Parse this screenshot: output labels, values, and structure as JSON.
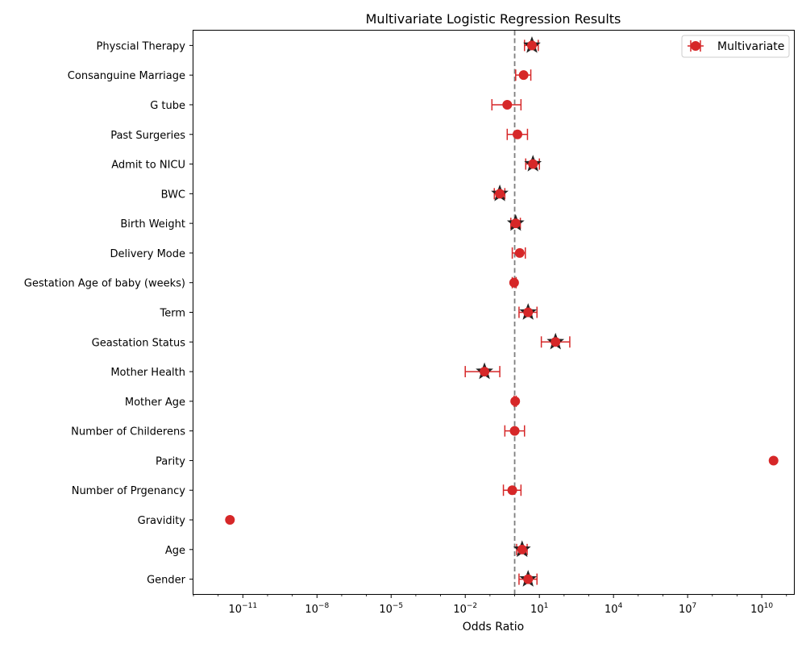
{
  "chart_data": {
    "type": "scatter",
    "title": "Multivariate Logistic Regression Results",
    "xlabel": "Odds Ratio",
    "ylabel": "",
    "x_scale": "log",
    "xlim": [
      1e-13,
      200000000000.0
    ],
    "x_ticks": [
      {
        "value": 1e-11,
        "base": "10",
        "exp": "−11"
      },
      {
        "value": 1e-08,
        "base": "10",
        "exp": "−8"
      },
      {
        "value": 1e-05,
        "base": "10",
        "exp": "−5"
      },
      {
        "value": 0.01,
        "base": "10",
        "exp": "−2"
      },
      {
        "value": 10,
        "base": "10",
        "exp": "1"
      },
      {
        "value": 10000.0,
        "base": "10",
        "exp": "4"
      },
      {
        "value": 10000000.0,
        "base": "10",
        "exp": "7"
      },
      {
        "value": 10000000000.0,
        "base": "10",
        "exp": "10"
      }
    ],
    "reference_line": 1,
    "legend": {
      "label": "Multivariate",
      "position": "top-right"
    },
    "series_color": "#d62728",
    "reference_color": "#7f7f7f",
    "marker_significant": "star",
    "marker_default": "circle",
    "rows": [
      {
        "label": "Physcial Therapy",
        "or": 5.0,
        "lo": 2.5,
        "hi": 9.0,
        "significant": true
      },
      {
        "label": "Consanguine Marriage",
        "or": 2.3,
        "lo": 1.1,
        "hi": 4.5,
        "significant": false
      },
      {
        "label": "G tube",
        "or": 0.5,
        "lo": 0.12,
        "hi": 1.8,
        "significant": false
      },
      {
        "label": "Past Surgeries",
        "or": 1.3,
        "lo": 0.5,
        "hi": 3.3,
        "significant": false
      },
      {
        "label": "Admit to NICU",
        "or": 5.5,
        "lo": 2.8,
        "hi": 10.0,
        "significant": true
      },
      {
        "label": "BWC",
        "or": 0.25,
        "lo": 0.15,
        "hi": 0.4,
        "significant": true
      },
      {
        "label": "Birth Weight",
        "or": 1.1,
        "lo": 0.7,
        "hi": 1.7,
        "significant": true
      },
      {
        "label": "Delivery Mode",
        "or": 1.6,
        "lo": 0.8,
        "hi": 2.7,
        "significant": false
      },
      {
        "label": "Gestation Age of baby (weeks)",
        "or": 0.95,
        "lo": 0.8,
        "hi": 1.15,
        "significant": false
      },
      {
        "label": "Term",
        "or": 3.5,
        "lo": 1.5,
        "hi": 8.0,
        "significant": true
      },
      {
        "label": "Geastation Status",
        "or": 45,
        "lo": 12,
        "hi": 170,
        "significant": true
      },
      {
        "label": "Mother Health",
        "or": 0.06,
        "lo": 0.01,
        "hi": 0.25,
        "significant": true
      },
      {
        "label": "Mother Age",
        "or": 1.05,
        "lo": 0.95,
        "hi": 1.15,
        "significant": false
      },
      {
        "label": "Number of Childerens",
        "or": 1.0,
        "lo": 0.4,
        "hi": 2.5,
        "significant": false
      },
      {
        "label": "Parity",
        "or": 30000000000,
        "lo": 30000000000,
        "hi": 30000000000,
        "significant": false
      },
      {
        "label": "Number of Prgenancy",
        "or": 0.8,
        "lo": 0.35,
        "hi": 1.8,
        "significant": false
      },
      {
        "label": "Gravidity",
        "or": 3e-12,
        "lo": 3e-12,
        "hi": 3e-12,
        "significant": false
      },
      {
        "label": "Age",
        "or": 2.0,
        "lo": 1.2,
        "hi": 3.2,
        "significant": true
      },
      {
        "label": "Gender",
        "or": 3.5,
        "lo": 1.5,
        "hi": 8.0,
        "significant": true
      }
    ]
  }
}
